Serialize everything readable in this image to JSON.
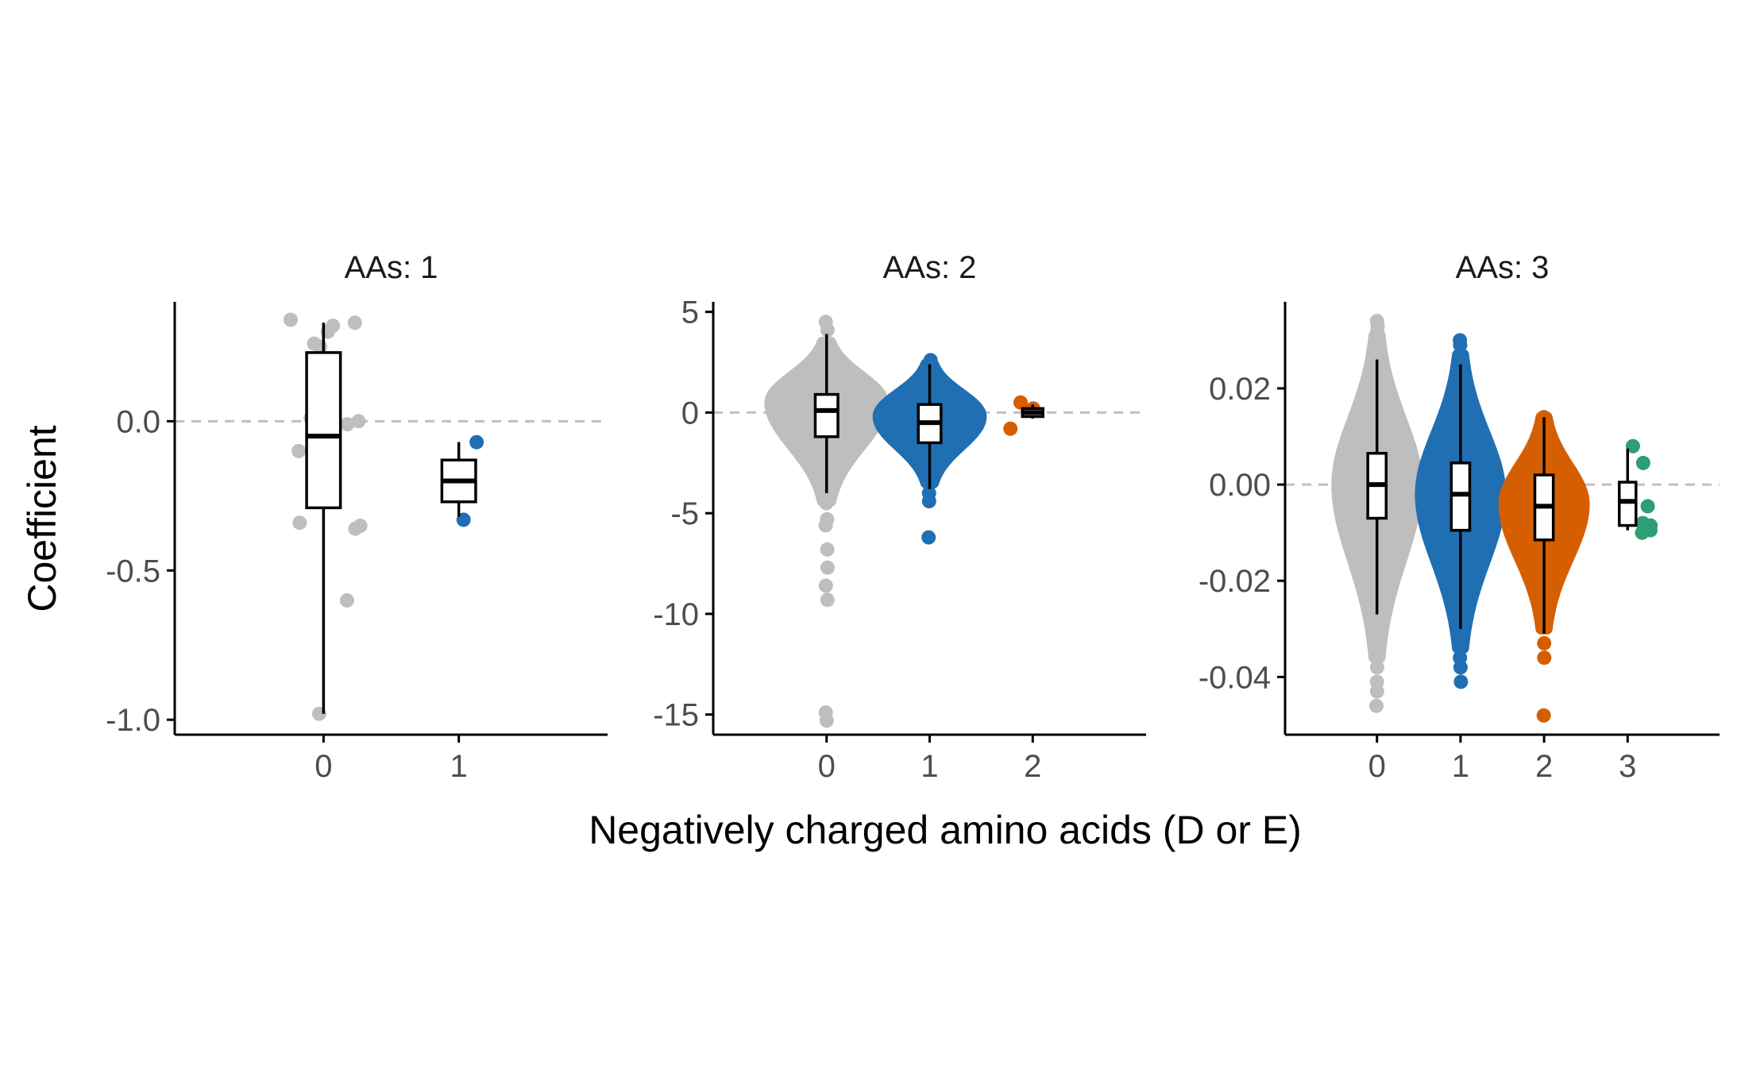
{
  "chart_data": {
    "type": "boxplot",
    "ylabel": "Coefficient",
    "xlabel": "Negatively charged amino acids (D or E)",
    "group_colors": {
      "0": "#bebebe",
      "1": "#1f6fb2",
      "2": "#d55e00",
      "3": "#2e9e73"
    },
    "zero_line_color": "#c0c0c0",
    "panels": [
      {
        "title": "AAs: 1",
        "ylim": [
          -1.05,
          0.4
        ],
        "yticks": [
          0.0,
          -0.5,
          -1.0
        ],
        "ytick_labels": [
          "0.0",
          "-0.5",
          "-1.0"
        ],
        "categories": [
          "0",
          "1"
        ],
        "groups": [
          {
            "category": "0",
            "box": {
              "q1": -0.29,
              "median": -0.05,
              "q3": 0.23,
              "whisker_low": -0.98,
              "whisker_high": 0.33
            },
            "points": [
              0.33,
              0.34,
              0.3,
              0.26,
              0.25,
              0.32,
              -0.1,
              0.01,
              -0.13,
              0.0,
              -0.01,
              -0.34,
              -0.35,
              -0.6,
              -0.98,
              -0.36,
              0.0,
              -0.08
            ]
          },
          {
            "category": "1",
            "box": {
              "q1": -0.27,
              "median": -0.2,
              "q3": -0.13,
              "whisker_low": -0.32,
              "whisker_high": -0.07
            },
            "points": [
              -0.07,
              -0.33
            ]
          }
        ]
      },
      {
        "title": "AAs: 2",
        "ylim": [
          -16,
          5.5
        ],
        "yticks": [
          5,
          0,
          -5,
          -10,
          -15
        ],
        "ytick_labels": [
          "5",
          "0",
          "-5",
          "-10",
          "-15"
        ],
        "categories": [
          "0",
          "1",
          "2"
        ],
        "groups": [
          {
            "category": "0",
            "box": {
              "q1": -1.2,
              "median": 0.1,
              "q3": 0.9,
              "whisker_low": -4.0,
              "whisker_high": 3.9
            },
            "points": [
              4.5,
              4.1,
              3.4,
              2.6,
              -4.5,
              -5.3,
              -5.6,
              -6.8,
              -7.7,
              -8.6,
              -9.3,
              -14.9,
              -15.3
            ],
            "violin": {
              "low": -4.4,
              "high": 3.5,
              "center": 0.5,
              "halfwidth": 0.55
            }
          },
          {
            "category": "1",
            "box": {
              "q1": -1.5,
              "median": -0.5,
              "q3": 0.4,
              "whisker_low": -3.8,
              "whisker_high": 2.4
            },
            "points": [
              2.6,
              -4.0,
              -4.4,
              -6.2
            ],
            "violin": {
              "low": -3.5,
              "high": 2.4,
              "center": -0.2,
              "halfwidth": 0.5
            }
          },
          {
            "category": "2",
            "box": {
              "q1": -0.2,
              "median": 0.0,
              "q3": 0.2,
              "whisker_low": -0.3,
              "whisker_high": 0.4
            },
            "points": [
              0.5,
              0.1,
              0.2,
              -0.8
            ]
          }
        ]
      },
      {
        "title": "AAs: 3",
        "ylim": [
          -0.052,
          0.038
        ],
        "yticks": [
          0.02,
          0.0,
          -0.02,
          -0.04
        ],
        "ytick_labels": [
          "0.02",
          "0.00",
          "-0.02",
          "-0.04"
        ],
        "categories": [
          "0",
          "1",
          "2",
          "3"
        ],
        "groups": [
          {
            "category": "0",
            "box": {
              "q1": -0.007,
              "median": 0.0,
              "q3": 0.0065,
              "whisker_low": -0.027,
              "whisker_high": 0.026
            },
            "points": [
              0.034,
              0.033,
              0.032,
              -0.038,
              -0.041,
              -0.043,
              -0.046
            ],
            "violin": {
              "low": -0.036,
              "high": 0.031,
              "center": 0.0,
              "halfwidth": 0.48
            }
          },
          {
            "category": "1",
            "box": {
              "q1": -0.0095,
              "median": -0.002,
              "q3": 0.0045,
              "whisker_low": -0.03,
              "whisker_high": 0.025
            },
            "points": [
              0.03,
              0.029,
              -0.036,
              -0.038,
              -0.041
            ],
            "violin": {
              "low": -0.034,
              "high": 0.027,
              "center": -0.002,
              "halfwidth": 0.48
            }
          },
          {
            "category": "2",
            "box": {
              "q1": -0.0115,
              "median": -0.0045,
              "q3": 0.002,
              "whisker_low": -0.031,
              "whisker_high": 0.014
            },
            "points": [
              0.014,
              -0.033,
              -0.036,
              -0.048
            ],
            "violin": {
              "low": -0.03,
              "high": 0.014,
              "center": -0.004,
              "halfwidth": 0.48
            }
          },
          {
            "category": "3",
            "box": {
              "q1": -0.0085,
              "median": -0.0035,
              "q3": 0.0005,
              "whisker_low": -0.0095,
              "whisker_high": 0.0075
            },
            "points": [
              0.008,
              0.0045,
              -0.0045,
              -0.0085,
              -0.0095,
              -0.01,
              -0.008
            ]
          }
        ]
      }
    ]
  }
}
